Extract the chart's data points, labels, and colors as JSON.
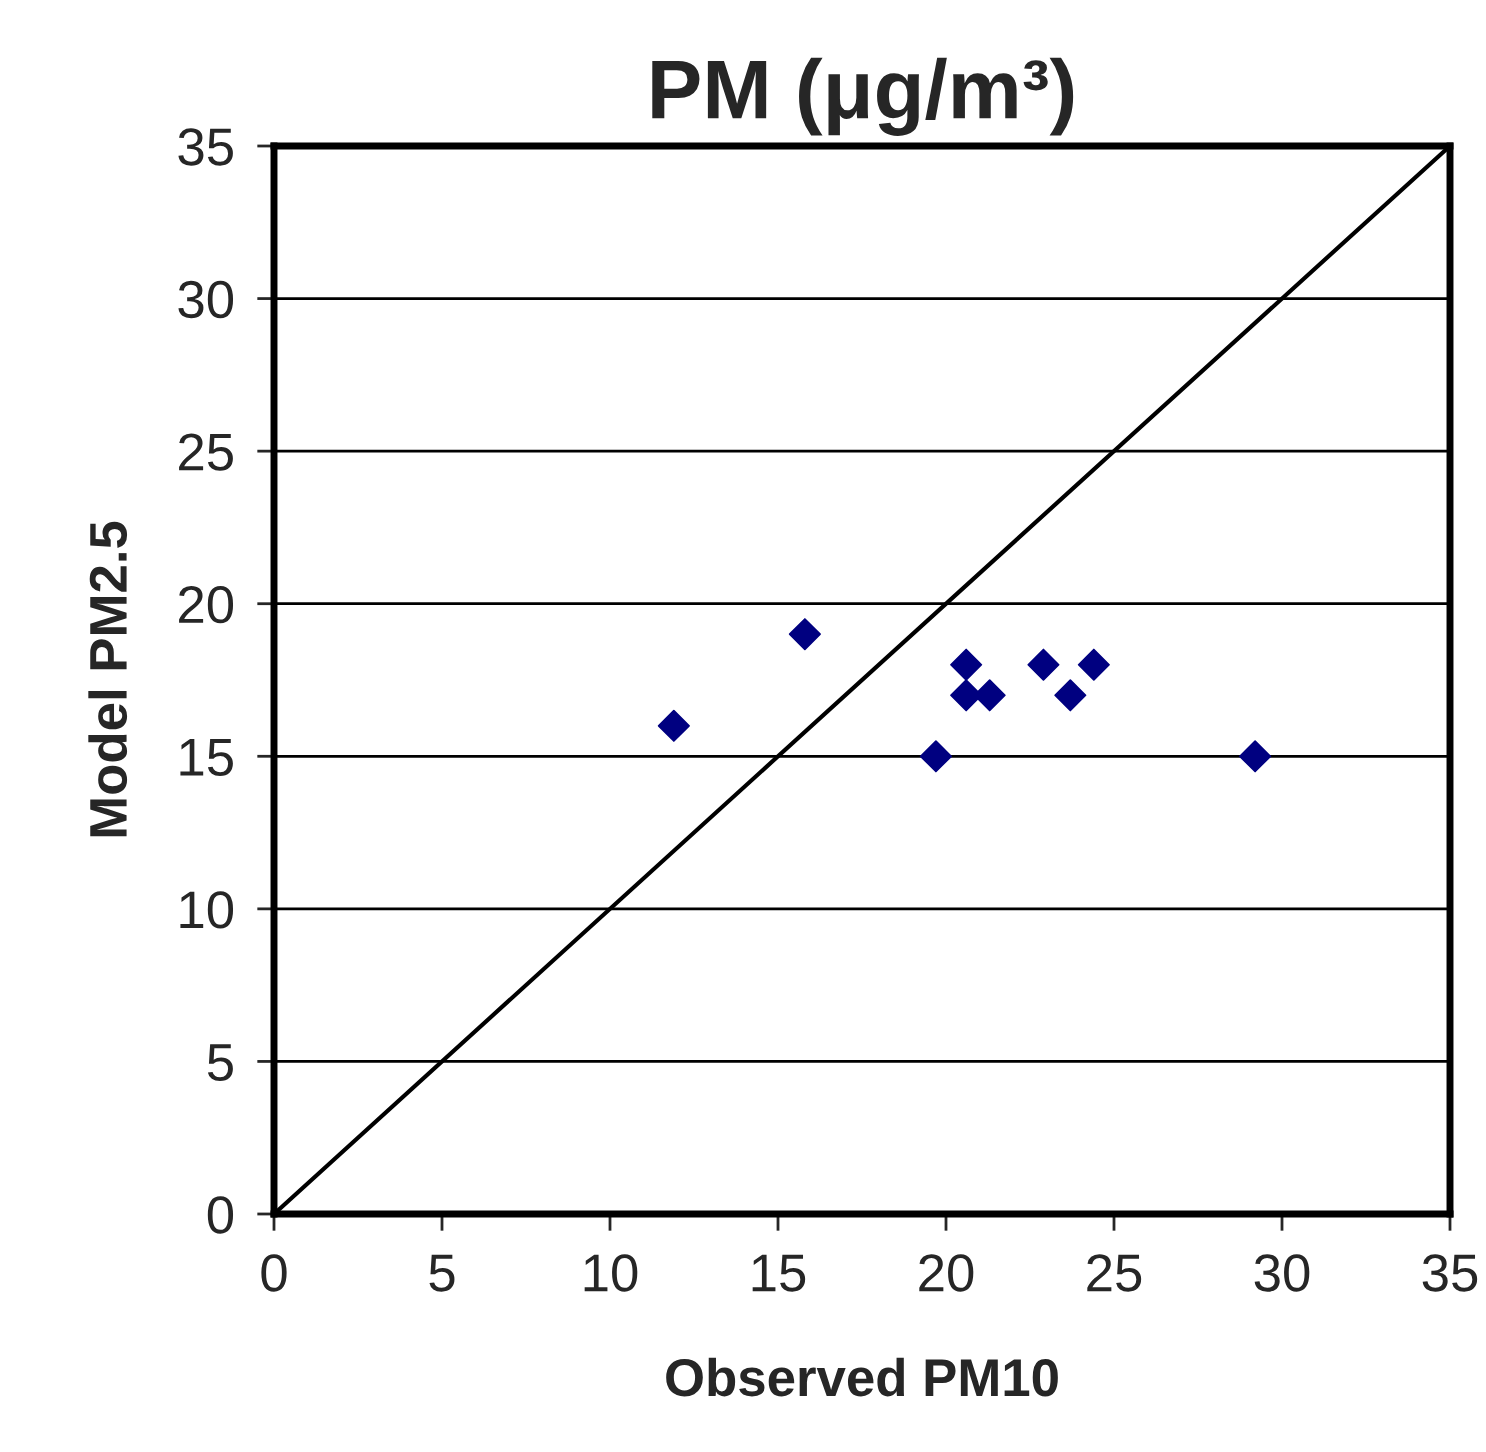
{
  "chart_data": {
    "type": "scatter",
    "title": "PM (μg/m³)",
    "xlabel": "Observed PM10",
    "ylabel": "Model PM2.5",
    "xlim": [
      0,
      35
    ],
    "ylim": [
      0,
      35
    ],
    "xticks": [
      0,
      5,
      10,
      15,
      20,
      25,
      30,
      35
    ],
    "yticks": [
      0,
      5,
      10,
      15,
      20,
      25,
      30,
      35
    ],
    "grid": "y",
    "legend": false,
    "series": [
      {
        "color": "#000080",
        "marker": "diamond",
        "x": [
          11.9,
          15.8,
          19.7,
          20.6,
          20.6,
          21.3,
          22.9,
          23.7,
          24.4,
          29.2
        ],
        "values": [
          16,
          19,
          15,
          18,
          17,
          17,
          18,
          17,
          18,
          15
        ]
      },
      {
        "type": "line",
        "color": "#000000",
        "marker": "none",
        "x": [
          0,
          35
        ],
        "values": [
          0,
          35
        ]
      }
    ]
  }
}
